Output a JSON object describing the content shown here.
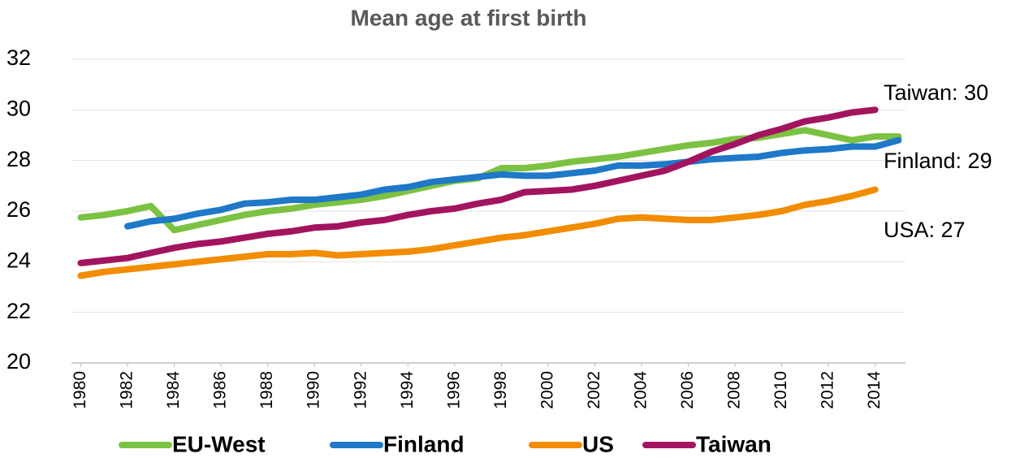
{
  "chart_data": {
    "type": "line",
    "title": "Mean age at first birth",
    "x": [
      1980,
      1981,
      1982,
      1983,
      1984,
      1985,
      1986,
      1987,
      1988,
      1989,
      1990,
      1991,
      1992,
      1993,
      1994,
      1995,
      1996,
      1997,
      1998,
      1999,
      2000,
      2001,
      2002,
      2003,
      2004,
      2005,
      2006,
      2007,
      2008,
      2009,
      2010,
      2011,
      2012,
      2013,
      2014,
      2015
    ],
    "series": [
      {
        "name": "EU-West",
        "color": "#7cc242",
        "values": [
          25.75,
          25.85,
          26.0,
          26.2,
          25.25,
          25.45,
          25.65,
          25.85,
          26.0,
          26.1,
          26.25,
          26.35,
          26.45,
          26.6,
          26.8,
          27.0,
          27.2,
          27.3,
          27.7,
          27.7,
          27.8,
          27.95,
          28.05,
          28.15,
          28.3,
          28.45,
          28.6,
          28.7,
          28.85,
          28.9,
          29.05,
          29.2,
          29.0,
          28.8,
          28.95,
          28.95
        ]
      },
      {
        "name": "Finland",
        "color": "#1f78c8",
        "values": [
          null,
          null,
          25.4,
          25.6,
          25.7,
          25.9,
          26.05,
          26.3,
          26.35,
          26.45,
          26.45,
          26.55,
          26.65,
          26.85,
          26.95,
          27.15,
          27.25,
          27.35,
          27.45,
          27.4,
          27.4,
          27.5,
          27.6,
          27.8,
          27.8,
          27.85,
          27.95,
          28.05,
          28.1,
          28.15,
          28.3,
          28.4,
          28.45,
          28.55,
          28.55,
          28.8
        ]
      },
      {
        "name": "US",
        "color": "#f28c00",
        "values": [
          23.45,
          23.6,
          23.7,
          23.8,
          23.9,
          24.0,
          24.1,
          24.2,
          24.3,
          24.3,
          24.35,
          24.25,
          24.3,
          24.35,
          24.4,
          24.5,
          24.65,
          24.8,
          24.95,
          25.05,
          25.2,
          25.35,
          25.5,
          25.7,
          25.75,
          25.7,
          25.65,
          25.65,
          25.75,
          25.85,
          26.0,
          26.25,
          26.4,
          26.6,
          26.85,
          null
        ]
      },
      {
        "name": "Taiwan",
        "color": "#a3145f",
        "values": [
          23.95,
          24.05,
          24.15,
          24.35,
          24.55,
          24.7,
          24.8,
          24.95,
          25.1,
          25.2,
          25.35,
          25.4,
          25.55,
          25.65,
          25.85,
          26.0,
          26.1,
          26.3,
          26.45,
          26.75,
          26.8,
          26.85,
          27.0,
          27.2,
          27.4,
          27.6,
          27.95,
          28.35,
          28.65,
          29.0,
          29.25,
          29.55,
          29.7,
          29.9,
          30.0,
          null
        ]
      }
    ],
    "annotations": [
      "Taiwan: 30",
      "Finland: 29",
      "USA: 27"
    ],
    "xlim": [
      1979.6,
      2015.3
    ],
    "xticks": [
      1980,
      1982,
      1984,
      1986,
      1988,
      1990,
      1992,
      1994,
      1996,
      1998,
      2000,
      2002,
      2004,
      2006,
      2008,
      2010,
      2012,
      2014
    ],
    "ylim": [
      20,
      32
    ],
    "yticks": [
      20,
      22,
      24,
      26,
      28,
      30,
      32
    ],
    "grid": true,
    "legend": "bottom"
  }
}
